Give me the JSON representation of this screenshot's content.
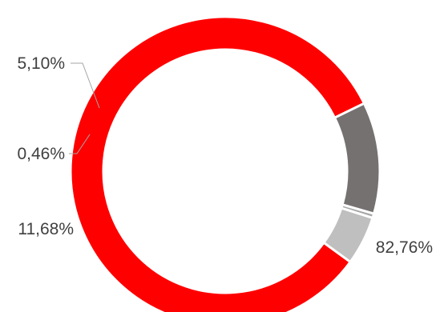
{
  "chart_data": {
    "type": "pie",
    "donut": true,
    "title": "",
    "legend": false,
    "slices": [
      {
        "label": "82,76%",
        "value": 82.76,
        "color": "#ff0000"
      },
      {
        "label": "11,68%",
        "value": 11.68,
        "color": "#767171"
      },
      {
        "label": "0,46%",
        "value": 0.46,
        "color": "#a6a6a6"
      },
      {
        "label": "5,10%",
        "value": 5.1,
        "color": "#bfbfbf"
      }
    ],
    "leader_line_color": "#a6a6a6",
    "separator_color": "#ffffff"
  }
}
